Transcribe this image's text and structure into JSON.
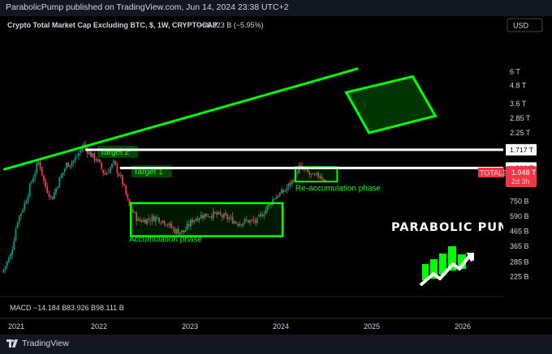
{
  "header": {
    "published_line": "ParabolicPump published on TradingView.com, Jun 14, 2024 23:38 UTC+2"
  },
  "footer": {
    "brand": "TradingView"
  },
  "legend": {
    "title": "Crypto Total Market Cap Excluding BTC, $, 1W, CRYPTOCAP",
    "change": "−66.323 B (−5.95%)"
  },
  "currency_badge": "USD",
  "watermark": "PARABOLIC PUMP",
  "price_scale": {
    "ticks": [
      {
        "label": "6 T",
        "value": 6.0
      },
      {
        "label": "4.8 T",
        "value": 4.8
      },
      {
        "label": "3.6 T",
        "value": 3.6
      },
      {
        "label": "2.85 T",
        "value": 2.85
      },
      {
        "label": "2.25 T",
        "value": 2.25
      },
      {
        "label": "750 B",
        "value": 0.75
      },
      {
        "label": "590 B",
        "value": 0.59
      },
      {
        "label": "465 B",
        "value": 0.465
      },
      {
        "label": "365 B",
        "value": 0.365
      },
      {
        "label": "285 B",
        "value": 0.285
      },
      {
        "label": "225 B",
        "value": 0.225
      }
    ],
    "level_boxes": [
      {
        "label": "1.717 T",
        "value": 1.717
      },
      {
        "label": "1.282 T",
        "value": 1.282
      }
    ],
    "current": {
      "symbol": "TOTAL2",
      "price": "1.048 T",
      "countdown": "2d 3h",
      "value": 1.048
    }
  },
  "time_scale": {
    "ticks": [
      {
        "label": "2021",
        "t": 2021.0
      },
      {
        "label": "2022",
        "t": 2022.0
      },
      {
        "label": "2023",
        "t": 2023.0
      },
      {
        "label": "2024",
        "t": 2024.0
      },
      {
        "label": "2025",
        "t": 2025.0
      },
      {
        "label": "2026",
        "t": 2026.0
      }
    ]
  },
  "macd": {
    "label": "MACD",
    "values": [
      "−14.184 B",
      "83.926 B",
      "98.111 B"
    ],
    "colors": [
      "#f23645",
      "#2962ff",
      "#ff6d00"
    ]
  },
  "annotations": {
    "target2": "Target 2",
    "target1": "Target 1",
    "reaccumulation": "Re-accumulation phase",
    "accumulation": "Accumulation phase"
  },
  "colors": {
    "up": "#089981",
    "down": "#f23645",
    "annotation_green": "#00ff00",
    "level_line": "#ffffff",
    "current_price": "#f23645"
  },
  "chart_data": {
    "type": "candlestick",
    "title": "Crypto Total Market Cap Excluding BTC, $, 1W, CRYPTOCAP",
    "scale": "log",
    "x_unit": "year",
    "y_unit": "trillion USD",
    "xlim": [
      2021.0,
      2026.5
    ],
    "ylim": [
      0.2,
      6.5
    ],
    "series": [
      {
        "name": "TOTAL2",
        "waypoints": [
          [
            2020.95,
            0.24
          ],
          [
            2021.05,
            0.32
          ],
          [
            2021.12,
            0.55
          ],
          [
            2021.2,
            0.72
          ],
          [
            2021.28,
            1.05
          ],
          [
            2021.36,
            1.45
          ],
          [
            2021.42,
            0.98
          ],
          [
            2021.5,
            0.78
          ],
          [
            2021.58,
            1.05
          ],
          [
            2021.66,
            1.35
          ],
          [
            2021.75,
            1.45
          ],
          [
            2021.85,
            1.85
          ],
          [
            2021.92,
            1.6
          ],
          [
            2022.0,
            1.45
          ],
          [
            2022.08,
            1.15
          ],
          [
            2022.18,
            1.38
          ],
          [
            2022.27,
            1.05
          ],
          [
            2022.35,
            0.7
          ],
          [
            2022.45,
            0.55
          ],
          [
            2022.55,
            0.56
          ],
          [
            2022.65,
            0.58
          ],
          [
            2022.75,
            0.54
          ],
          [
            2022.85,
            0.47
          ],
          [
            2022.95,
            0.46
          ],
          [
            2023.05,
            0.56
          ],
          [
            2023.15,
            0.6
          ],
          [
            2023.3,
            0.61
          ],
          [
            2023.45,
            0.57
          ],
          [
            2023.55,
            0.53
          ],
          [
            2023.65,
            0.55
          ],
          [
            2023.75,
            0.54
          ],
          [
            2023.85,
            0.66
          ],
          [
            2023.95,
            0.8
          ],
          [
            2024.05,
            0.88
          ],
          [
            2024.15,
            1.05
          ],
          [
            2024.22,
            1.3
          ],
          [
            2024.3,
            1.2
          ],
          [
            2024.38,
            1.1
          ],
          [
            2024.45,
            1.15
          ],
          [
            2024.5,
            1.05
          ]
        ]
      }
    ],
    "levels": [
      {
        "label": "1.717 T",
        "value": 1.717,
        "from_t": 2021.85
      },
      {
        "label": "1.282 T",
        "value": 1.282,
        "from_t": 2022.23
      }
    ],
    "trendline": {
      "from": [
        2020.95,
        1.25
      ],
      "to": [
        2024.85,
        6.3
      ]
    },
    "zones": [
      {
        "label": "Accumulation phase",
        "t0": 2022.35,
        "t1": 2024.02,
        "y0": 0.43,
        "y1": 0.73
      },
      {
        "label": "Re-accumulation phase",
        "t0": 2024.16,
        "t1": 2024.62,
        "y0": 1.03,
        "y1": 1.3
      },
      {
        "label": "",
        "kind": "target-box",
        "corners": [
          [
            2024.72,
            4.3
          ],
          [
            2025.45,
            5.55
          ],
          [
            2025.7,
            2.95
          ],
          [
            2024.97,
            2.25
          ]
        ]
      }
    ],
    "labels": [
      {
        "label": "Target 2",
        "t": 2021.85,
        "y": 1.62
      },
      {
        "label": "Target 1",
        "t": 2022.38,
        "y": 1.18
      }
    ]
  }
}
